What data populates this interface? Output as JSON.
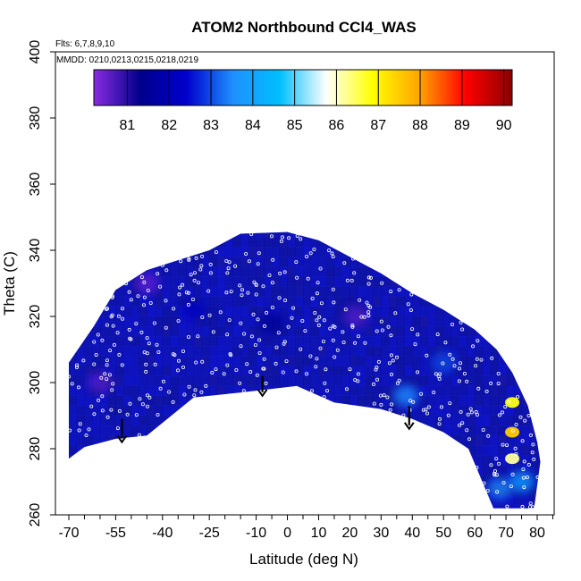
{
  "chart_data": {
    "type": "heatmap",
    "title": "ATOM2 Northbound CCl4_WAS",
    "flights_note": "Flts: 6,7,8,9,10",
    "dates_note": "MMDD: 0210,0213,0215,0218,0219",
    "xlabel": "Latitude (deg N)",
    "ylabel": "Theta (C)",
    "xlim": [
      -70,
      82
    ],
    "ylim": [
      260,
      400
    ],
    "x_ticks": [
      -70,
      -55,
      -40,
      -25,
      -10,
      0,
      10,
      20,
      30,
      40,
      50,
      60,
      70,
      80
    ],
    "x_tick_labels": [
      "-70",
      "-55",
      "-40",
      "-25",
      "-10",
      "0",
      "10",
      "20",
      "30",
      "40",
      "50",
      "60",
      "70",
      "80"
    ],
    "x_minor_ticks": [
      -65,
      -60,
      -50,
      -45,
      -35,
      -30,
      -20,
      -15,
      -5,
      5,
      15,
      25,
      35,
      45,
      55,
      65,
      75
    ],
    "y_ticks": [
      260,
      280,
      300,
      320,
      340,
      360,
      380,
      400
    ],
    "y_tick_labels": [
      "260",
      "280",
      "300",
      "320",
      "340",
      "360",
      "380",
      "400"
    ],
    "grid": false,
    "colorbar": {
      "range": [
        80.2,
        90.2
      ],
      "ticks": [
        81,
        82,
        83,
        84,
        85,
        86,
        87,
        88,
        89,
        90
      ],
      "tick_labels": [
        "81",
        "82",
        "83",
        "84",
        "85",
        "86",
        "87",
        "88",
        "89",
        "90"
      ],
      "colors": [
        "#8a2be2",
        "#00008b",
        "#0000cd",
        "#1e90ff",
        "#00bfff",
        "#ffffff",
        "#ffff00",
        "#ffa500",
        "#ff0000",
        "#8b0000"
      ]
    },
    "colors": {
      "field_main": "#1f2bbf",
      "field_light": "#2d5fe6",
      "sample_point": "#ffffff",
      "arrow": "#000000"
    },
    "upper_boundary": [
      {
        "lat": -70,
        "theta": 306
      },
      {
        "lat": -62,
        "theta": 317
      },
      {
        "lat": -55,
        "theta": 328
      },
      {
        "lat": -45,
        "theta": 334
      },
      {
        "lat": -35,
        "theta": 337
      },
      {
        "lat": -25,
        "theta": 340
      },
      {
        "lat": -15,
        "theta": 345
      },
      {
        "lat": 0,
        "theta": 345.5
      },
      {
        "lat": 10,
        "theta": 343
      },
      {
        "lat": 20,
        "theta": 338
      },
      {
        "lat": 30,
        "theta": 333
      },
      {
        "lat": 40,
        "theta": 327
      },
      {
        "lat": 50,
        "theta": 322
      },
      {
        "lat": 60,
        "theta": 316
      },
      {
        "lat": 67,
        "theta": 310
      },
      {
        "lat": 72,
        "theta": 303
      },
      {
        "lat": 77,
        "theta": 293
      },
      {
        "lat": 80,
        "theta": 282
      },
      {
        "lat": 81,
        "theta": 276
      }
    ],
    "lower_boundary": [
      {
        "lat": 79,
        "theta": 262
      },
      {
        "lat": 66,
        "theta": 262
      },
      {
        "lat": 58,
        "theta": 280
      },
      {
        "lat": 50,
        "theta": 285
      },
      {
        "lat": 40,
        "theta": 289
      },
      {
        "lat": 30,
        "theta": 292
      },
      {
        "lat": 15,
        "theta": 294
      },
      {
        "lat": 3,
        "theta": 299
      },
      {
        "lat": -15,
        "theta": 297
      },
      {
        "lat": -30,
        "theta": 295.5
      },
      {
        "lat": -45,
        "theta": 284
      },
      {
        "lat": -55,
        "theta": 283
      },
      {
        "lat": -65,
        "theta": 280.5
      },
      {
        "lat": -70,
        "theta": 277
      }
    ],
    "blobs": [
      {
        "lat": 72,
        "theta": 285,
        "value": 87.5
      },
      {
        "lat": 72,
        "theta": 294,
        "value": 86.8
      },
      {
        "lat": 72,
        "theta": 277,
        "value": 86.2
      },
      {
        "lat": 75,
        "theta": 270,
        "value": 84.0
      },
      {
        "lat": 68,
        "theta": 268,
        "value": 83.5
      },
      {
        "lat": 38,
        "theta": 296,
        "value": 83.6
      },
      {
        "lat": 50,
        "theta": 306,
        "value": 83.0
      },
      {
        "lat": -5,
        "theta": 318,
        "value": 81.4
      },
      {
        "lat": 22,
        "theta": 320,
        "value": 80.6
      },
      {
        "lat": -45,
        "theta": 330,
        "value": 80.5
      },
      {
        "lat": -60,
        "theta": 300,
        "value": 80.6
      },
      {
        "lat": -30,
        "theta": 322,
        "value": 82.2
      }
    ],
    "arrows": [
      {
        "lat": -53,
        "theta_top": 289,
        "theta_bottom": 282
      },
      {
        "lat": -8,
        "theta_top": 302,
        "theta_bottom": 296
      },
      {
        "lat": 39,
        "theta_top": 293,
        "theta_bottom": 286
      }
    ]
  }
}
